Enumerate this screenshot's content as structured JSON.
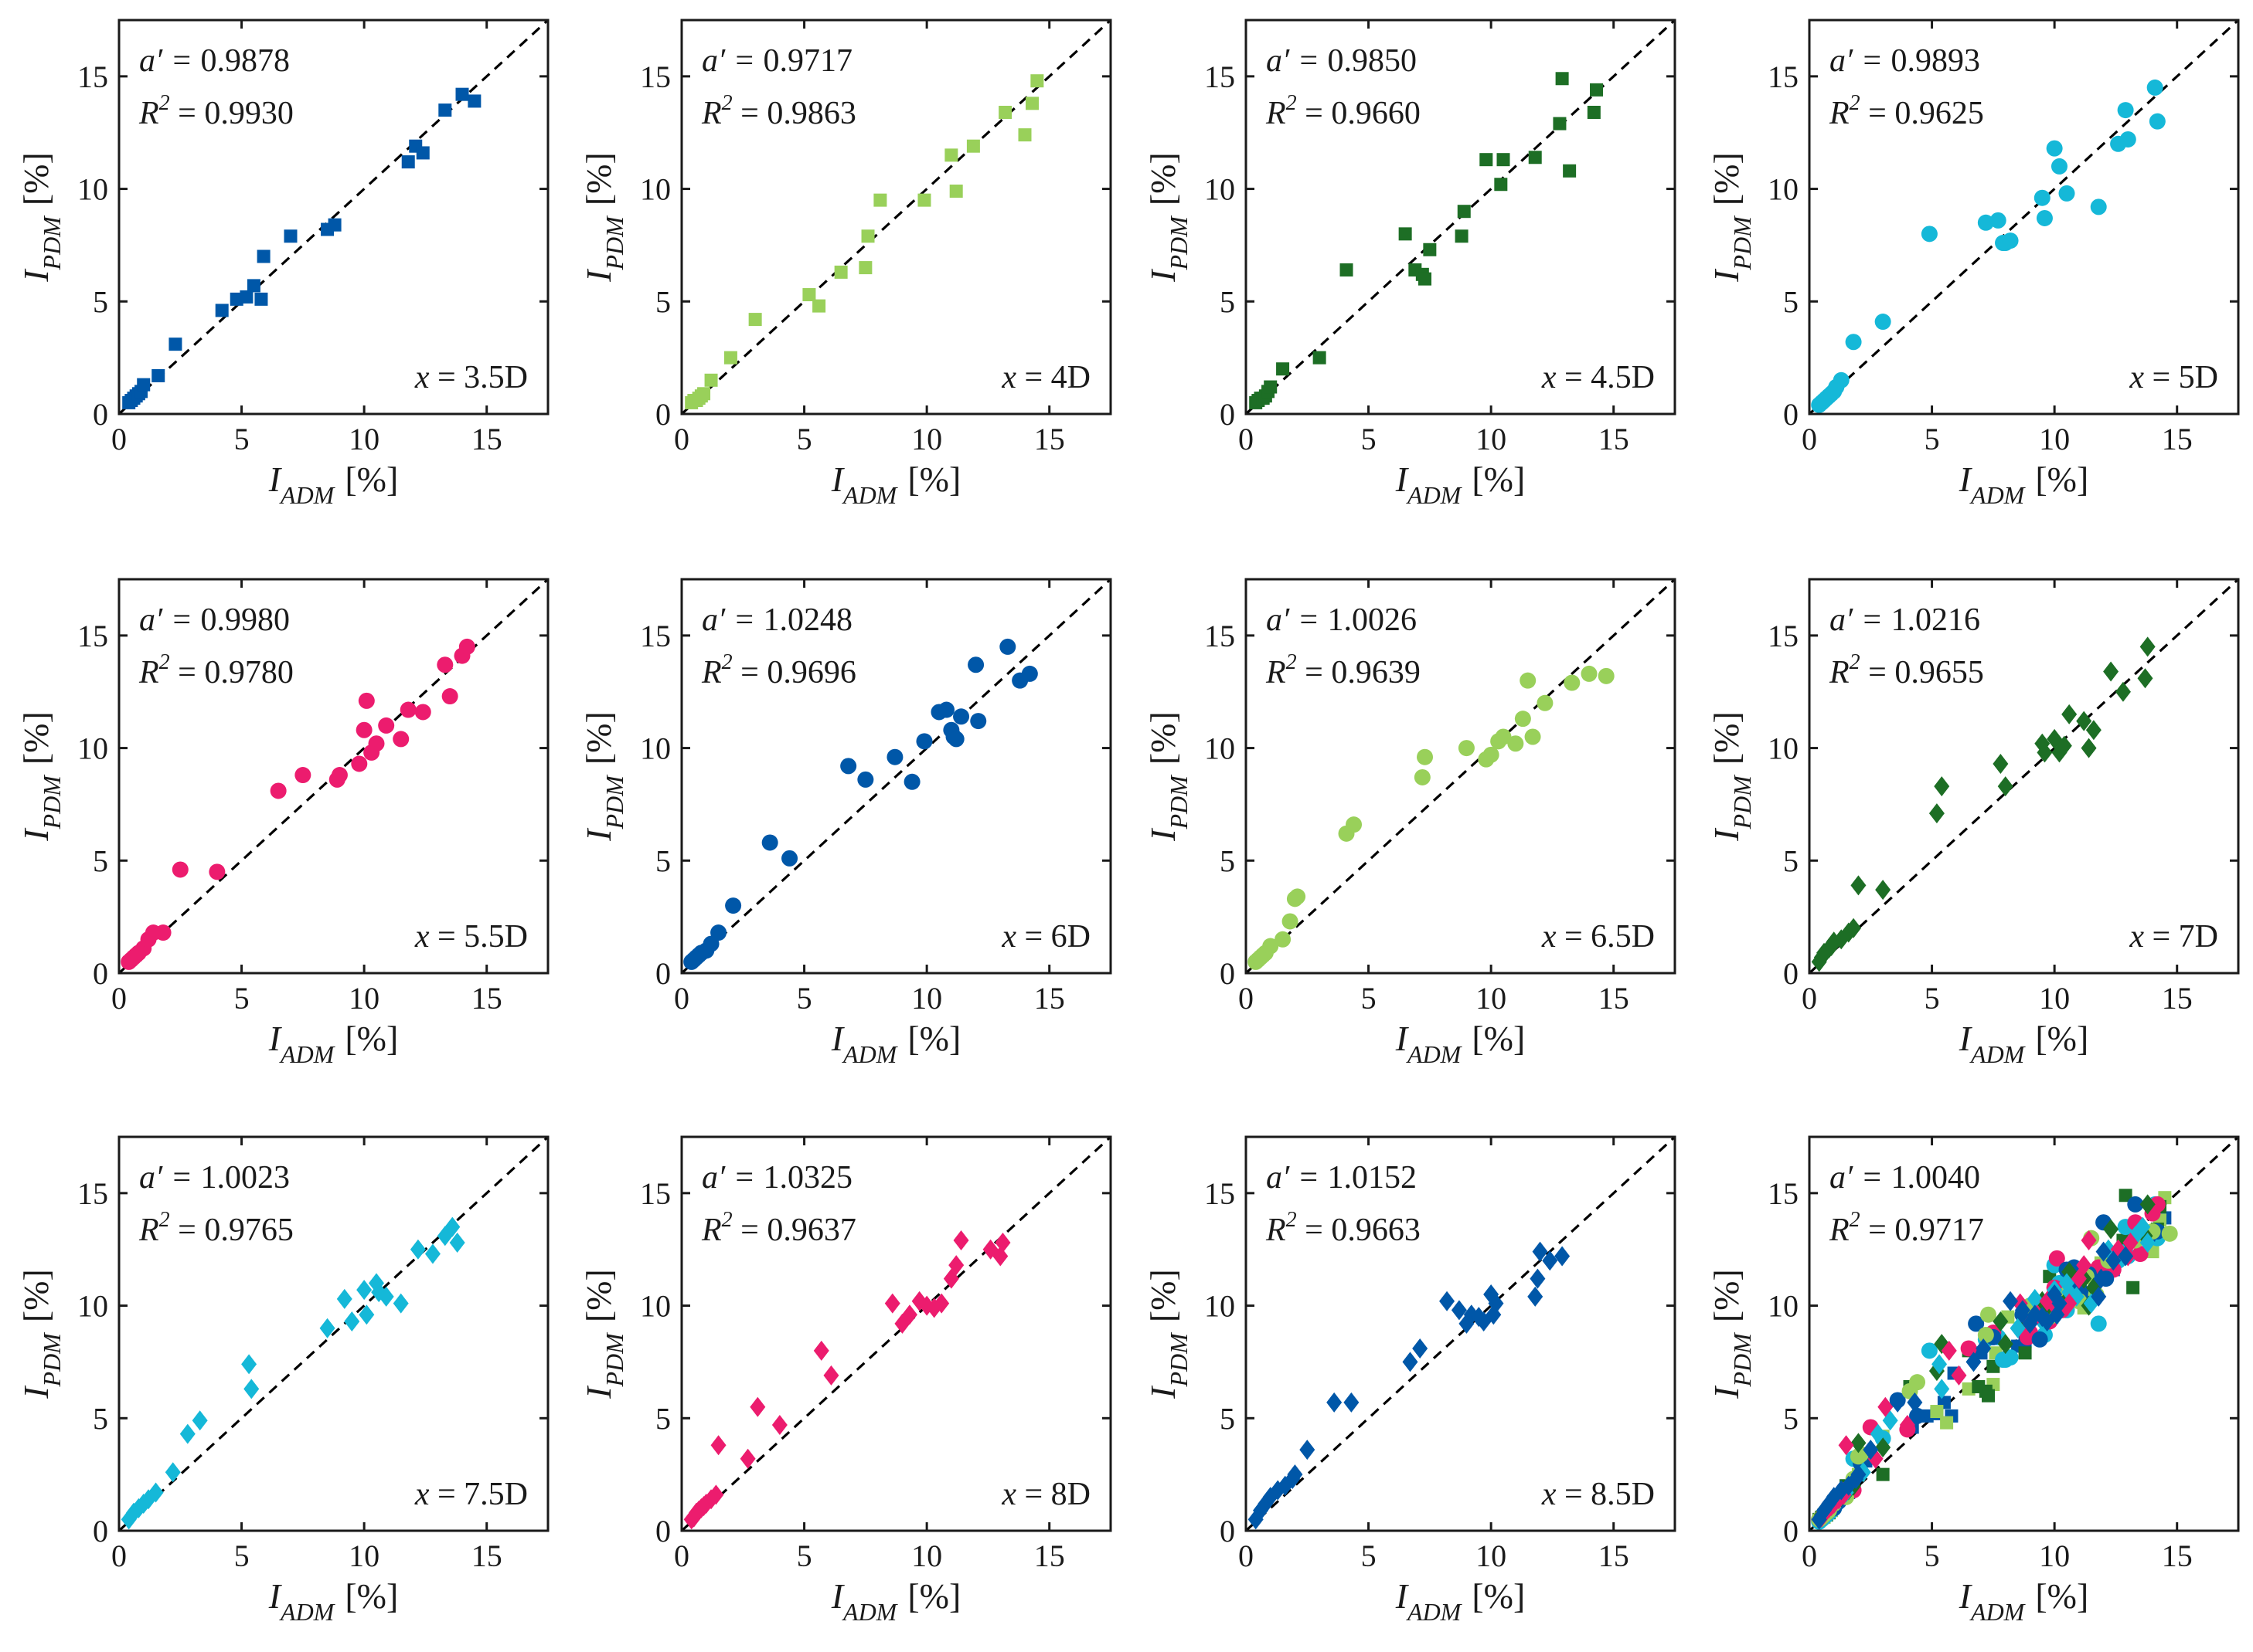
{
  "figure": {
    "xlabel_var": "I",
    "xlabel_sub": "ADM",
    "xlabel_unit": "[%]",
    "ylabel_var": "I",
    "ylabel_sub": "PDM",
    "ylabel_unit": "[%]",
    "slope_prefix": "a′ = ",
    "r2_prefix": "R",
    "r2_exp": "2",
    "r2_eq": " = ",
    "pos_prefix": "x",
    "pos_eq": " = "
  },
  "colors": {
    "blue": "#0057a8",
    "light_green": "#99d05a",
    "dark_green": "#1d6e25",
    "cyan": "#15b8d8",
    "pink": "#ec1c6e",
    "axis": "#1a1a1a",
    "reference_line": "#000000"
  },
  "chart_data": [
    {
      "type": "scatter",
      "marker": "square",
      "color": "blue",
      "slope": "0.9878",
      "r2": "0.9930",
      "position": "3.5D",
      "xlim": [
        0,
        17.5
      ],
      "ylim": [
        0,
        17.5
      ],
      "xticks": [
        "0",
        "5",
        "10",
        "15"
      ],
      "yticks": [
        "0",
        "5",
        "10",
        "15"
      ],
      "reference_line": "y = x",
      "series": [
        {
          "x": [
            0.4,
            0.5,
            0.6,
            0.7,
            0.8,
            0.9,
            1.0,
            1.6,
            2.3,
            4.2,
            4.8,
            5.2,
            5.5,
            5.8,
            5.9,
            7.0,
            8.5,
            8.8,
            11.8,
            12.1,
            12.4,
            13.3,
            14.0,
            14.5
          ],
          "y": [
            0.5,
            0.6,
            0.7,
            0.8,
            0.9,
            1.0,
            1.3,
            1.7,
            3.1,
            4.6,
            5.1,
            5.2,
            5.7,
            5.1,
            7.0,
            7.9,
            8.2,
            8.4,
            11.2,
            11.9,
            11.6,
            13.5,
            14.2,
            13.9
          ]
        }
      ]
    },
    {
      "type": "scatter",
      "marker": "square",
      "color": "light_green",
      "slope": "0.9717",
      "r2": "0.9863",
      "position": "4D",
      "xlim": [
        0,
        17.5
      ],
      "ylim": [
        0,
        17.5
      ],
      "xticks": [
        "0",
        "5",
        "10",
        "15"
      ],
      "yticks": [
        "0",
        "5",
        "10",
        "15"
      ],
      "reference_line": "y = x",
      "series": [
        {
          "x": [
            0.4,
            0.5,
            0.6,
            0.7,
            0.8,
            0.9,
            1.2,
            2.0,
            3.0,
            5.2,
            5.6,
            6.5,
            7.5,
            7.6,
            8.1,
            9.9,
            11.0,
            11.2,
            11.9,
            13.2,
            14.0,
            14.3,
            14.5
          ],
          "y": [
            0.5,
            0.6,
            0.6,
            0.7,
            0.8,
            0.9,
            1.5,
            2.5,
            4.2,
            5.3,
            4.8,
            6.3,
            6.5,
            7.9,
            9.5,
            9.5,
            11.5,
            9.9,
            11.9,
            13.4,
            12.4,
            13.8,
            14.8
          ]
        }
      ]
    },
    {
      "type": "scatter",
      "marker": "square",
      "color": "dark_green",
      "slope": "0.9850",
      "r2": "0.9660",
      "position": "4.5D",
      "xlim": [
        0,
        17.5
      ],
      "ylim": [
        0,
        17.5
      ],
      "xticks": [
        "0",
        "5",
        "10",
        "15"
      ],
      "yticks": [
        "0",
        "5",
        "10",
        "15"
      ],
      "reference_line": "y = x",
      "series": [
        {
          "x": [
            0.4,
            0.5,
            0.6,
            0.7,
            0.8,
            0.9,
            1.0,
            1.5,
            3.0,
            4.1,
            6.5,
            6.9,
            7.2,
            7.3,
            7.5,
            8.8,
            8.9,
            9.8,
            10.4,
            10.5,
            11.8,
            12.8,
            12.9,
            13.2,
            14.2,
            14.3
          ],
          "y": [
            0.5,
            0.6,
            0.7,
            0.7,
            0.8,
            1.0,
            1.2,
            2.0,
            2.5,
            6.4,
            8.0,
            6.4,
            6.2,
            6.0,
            7.3,
            7.9,
            9.0,
            11.3,
            10.2,
            11.3,
            11.4,
            12.9,
            14.9,
            10.8,
            13.4,
            14.4
          ]
        }
      ]
    },
    {
      "type": "scatter",
      "marker": "circle",
      "color": "cyan",
      "slope": "0.9893",
      "r2": "0.9625",
      "position": "5D",
      "xlim": [
        0,
        17.5
      ],
      "ylim": [
        0,
        17.5
      ],
      "xticks": [
        "0",
        "5",
        "10",
        "15"
      ],
      "yticks": [
        "0",
        "5",
        "10",
        "15"
      ],
      "reference_line": "y = x",
      "series": [
        {
          "x": [
            0.4,
            0.5,
            0.6,
            0.7,
            0.8,
            0.9,
            1.0,
            1.1,
            1.3,
            1.8,
            3.0,
            4.9,
            7.2,
            7.7,
            7.9,
            8.0,
            8.2,
            9.5,
            9.6,
            10.0,
            10.2,
            10.5,
            11.8,
            12.6,
            12.9,
            13.0,
            14.1,
            14.2
          ],
          "y": [
            0.4,
            0.5,
            0.6,
            0.7,
            0.8,
            0.9,
            1.0,
            1.2,
            1.5,
            3.2,
            4.1,
            8.0,
            8.5,
            8.6,
            7.6,
            7.6,
            7.7,
            9.6,
            8.7,
            11.8,
            11.0,
            9.8,
            9.2,
            12.0,
            13.5,
            12.2,
            14.5,
            13.0
          ]
        }
      ]
    },
    {
      "type": "scatter",
      "marker": "circle",
      "color": "pink",
      "slope": "0.9980",
      "r2": "0.9780",
      "position": "5.5D",
      "xlim": [
        0,
        17.5
      ],
      "ylim": [
        0,
        17.5
      ],
      "xticks": [
        "0",
        "5",
        "10",
        "15"
      ],
      "yticks": [
        "0",
        "5",
        "10",
        "15"
      ],
      "reference_line": "y = x",
      "series": [
        {
          "x": [
            0.4,
            0.5,
            0.6,
            0.7,
            0.8,
            1.0,
            1.2,
            1.4,
            1.8,
            2.5,
            4.0,
            6.5,
            7.5,
            8.9,
            9.0,
            9.8,
            10.0,
            10.1,
            10.3,
            10.5,
            10.9,
            11.5,
            11.8,
            12.4,
            13.3,
            13.5,
            14.0,
            14.2
          ],
          "y": [
            0.5,
            0.6,
            0.7,
            0.8,
            0.9,
            1.1,
            1.5,
            1.8,
            1.8,
            4.6,
            4.5,
            8.1,
            8.8,
            8.6,
            8.8,
            9.3,
            10.8,
            12.1,
            9.8,
            10.2,
            11.0,
            10.4,
            11.7,
            11.6,
            13.7,
            12.3,
            14.1,
            14.5
          ]
        }
      ]
    },
    {
      "type": "scatter",
      "marker": "circle",
      "color": "blue",
      "slope": "1.0248",
      "r2": "0.9696",
      "position": "6D",
      "xlim": [
        0,
        17.5
      ],
      "ylim": [
        0,
        17.5
      ],
      "xticks": [
        "0",
        "5",
        "10",
        "15"
      ],
      "yticks": [
        "0",
        "5",
        "10",
        "15"
      ],
      "reference_line": "y = x",
      "series": [
        {
          "x": [
            0.4,
            0.5,
            0.6,
            0.7,
            0.8,
            1.0,
            1.2,
            1.5,
            2.1,
            3.6,
            4.4,
            6.8,
            7.5,
            8.7,
            9.4,
            9.9,
            10.5,
            10.8,
            11.0,
            11.1,
            11.2,
            11.4,
            12.0,
            12.1,
            13.3,
            13.8,
            14.2
          ],
          "y": [
            0.5,
            0.6,
            0.7,
            0.8,
            0.9,
            1.0,
            1.3,
            1.8,
            3.0,
            5.8,
            5.1,
            9.2,
            8.6,
            9.6,
            8.5,
            10.3,
            11.6,
            11.7,
            10.8,
            10.5,
            10.4,
            11.4,
            13.7,
            11.2,
            14.5,
            13.0,
            13.3
          ]
        }
      ]
    },
    {
      "type": "scatter",
      "marker": "circle",
      "color": "light_green",
      "slope": "1.0026",
      "r2": "0.9639",
      "position": "6.5D",
      "xlim": [
        0,
        17.5
      ],
      "ylim": [
        0,
        17.5
      ],
      "xticks": [
        "0",
        "5",
        "10",
        "15"
      ],
      "yticks": [
        "0",
        "5",
        "10",
        "15"
      ],
      "reference_line": "y = x",
      "series": [
        {
          "x": [
            0.4,
            0.5,
            0.6,
            0.7,
            0.8,
            1.0,
            1.5,
            1.8,
            2.0,
            2.1,
            4.1,
            4.4,
            7.2,
            7.3,
            9.0,
            9.8,
            10.0,
            10.3,
            10.5,
            11.0,
            11.3,
            11.5,
            11.7,
            12.2,
            13.3,
            14.0,
            14.7
          ],
          "y": [
            0.5,
            0.6,
            0.7,
            0.8,
            0.9,
            1.2,
            1.5,
            2.3,
            3.3,
            3.4,
            6.2,
            6.6,
            8.7,
            9.6,
            10.0,
            9.5,
            9.7,
            10.3,
            10.5,
            10.2,
            11.3,
            13.0,
            10.5,
            12.0,
            12.9,
            13.3,
            13.2
          ]
        }
      ]
    },
    {
      "type": "scatter",
      "marker": "diamond",
      "color": "dark_green",
      "slope": "1.0216",
      "r2": "0.9655",
      "position": "7D",
      "xlim": [
        0,
        17.5
      ],
      "ylim": [
        0,
        17.5
      ],
      "xticks": [
        "0",
        "5",
        "10",
        "15"
      ],
      "yticks": [
        "0",
        "5",
        "10",
        "15"
      ],
      "reference_line": "y = x",
      "series": [
        {
          "x": [
            0.4,
            0.5,
            0.6,
            0.8,
            0.9,
            1.0,
            1.3,
            1.6,
            1.8,
            2.0,
            3.0,
            5.2,
            5.4,
            7.8,
            8.0,
            9.5,
            9.6,
            10.0,
            10.2,
            10.4,
            10.6,
            11.2,
            11.4,
            11.6,
            12.3,
            12.8,
            13.7,
            13.8
          ],
          "y": [
            0.5,
            0.7,
            0.9,
            1.1,
            1.2,
            1.4,
            1.5,
            1.8,
            2.0,
            3.9,
            3.7,
            7.1,
            8.3,
            9.3,
            8.3,
            10.2,
            9.8,
            10.4,
            9.8,
            10.1,
            11.5,
            11.2,
            10.0,
            10.8,
            13.4,
            12.5,
            13.1,
            14.5
          ]
        }
      ]
    },
    {
      "type": "scatter",
      "marker": "diamond",
      "color": "cyan",
      "slope": "1.0023",
      "r2": "0.9765",
      "position": "7.5D",
      "xlim": [
        0,
        17.5
      ],
      "ylim": [
        0,
        17.5
      ],
      "xticks": [
        "0",
        "5",
        "10",
        "15"
      ],
      "yticks": [
        "0",
        "5",
        "10",
        "15"
      ],
      "reference_line": "y = x",
      "series": [
        {
          "x": [
            0.4,
            0.6,
            0.8,
            1.0,
            1.2,
            1.5,
            2.2,
            2.8,
            3.3,
            5.3,
            5.4,
            8.5,
            9.2,
            9.5,
            10.0,
            10.1,
            10.5,
            10.6,
            10.9,
            11.5,
            12.2,
            12.8,
            13.3,
            13.6,
            13.8
          ],
          "y": [
            0.5,
            0.8,
            1.0,
            1.2,
            1.4,
            1.7,
            2.6,
            4.3,
            4.9,
            7.4,
            6.3,
            9.0,
            10.3,
            9.3,
            10.7,
            9.6,
            11.0,
            10.6,
            10.4,
            10.1,
            12.5,
            12.3,
            13.1,
            13.5,
            12.8
          ]
        }
      ]
    },
    {
      "type": "scatter",
      "marker": "diamond",
      "color": "pink",
      "slope": "1.0325",
      "r2": "0.9637",
      "position": "8D",
      "xlim": [
        0,
        17.5
      ],
      "ylim": [
        0,
        17.5
      ],
      "xticks": [
        "0",
        "5",
        "10",
        "15"
      ],
      "yticks": [
        "0",
        "5",
        "10",
        "15"
      ],
      "reference_line": "y = x",
      "series": [
        {
          "x": [
            0.4,
            0.5,
            0.6,
            0.7,
            0.8,
            0.9,
            1.0,
            1.2,
            1.4,
            1.5,
            2.7,
            3.1,
            4.0,
            5.7,
            6.1,
            8.6,
            9.0,
            9.3,
            9.7,
            10.0,
            10.3,
            10.6,
            11.0,
            11.2,
            11.4,
            12.6,
            13.0,
            13.1
          ],
          "y": [
            0.5,
            0.6,
            0.8,
            0.9,
            1.0,
            1.1,
            1.2,
            1.4,
            1.6,
            3.8,
            3.2,
            5.5,
            4.7,
            8.0,
            6.9,
            10.1,
            9.2,
            9.6,
            10.2,
            10.0,
            9.9,
            10.1,
            11.2,
            11.8,
            12.9,
            12.5,
            12.2,
            12.8
          ]
        }
      ]
    },
    {
      "type": "scatter",
      "marker": "diamond",
      "color": "blue",
      "slope": "1.0152",
      "r2": "0.9663",
      "position": "8.5D",
      "xlim": [
        0,
        17.5
      ],
      "ylim": [
        0,
        17.5
      ],
      "xticks": [
        "0",
        "5",
        "10",
        "15"
      ],
      "yticks": [
        "0",
        "5",
        "10",
        "15"
      ],
      "reference_line": "y = x",
      "series": [
        {
          "x": [
            0.4,
            0.6,
            0.8,
            1.0,
            1.3,
            1.6,
            1.9,
            2.0,
            2.5,
            3.6,
            4.3,
            6.7,
            7.1,
            8.2,
            8.7,
            9.0,
            9.2,
            9.5,
            9.7,
            10.0,
            10.1,
            10.2,
            11.8,
            11.9,
            12.0,
            12.4,
            12.9
          ],
          "y": [
            0.5,
            0.9,
            1.2,
            1.5,
            1.8,
            2.0,
            2.3,
            2.5,
            3.6,
            5.7,
            5.7,
            7.5,
            8.1,
            10.2,
            9.8,
            9.2,
            9.6,
            9.5,
            9.3,
            10.5,
            9.6,
            10.1,
            10.4,
            11.2,
            12.4,
            12.0,
            12.2
          ]
        }
      ]
    },
    {
      "type": "scatter",
      "marker": "mixed",
      "color": "combined",
      "slope": "1.0040",
      "r2": "0.9717",
      "position": "",
      "xlim": [
        0,
        17.5
      ],
      "ylim": [
        0,
        17.5
      ],
      "xticks": [
        "0",
        "5",
        "10",
        "15"
      ],
      "yticks": [
        "0",
        "5",
        "10",
        "15"
      ],
      "reference_line": "y = x",
      "combine": "all eleven panels above"
    }
  ]
}
